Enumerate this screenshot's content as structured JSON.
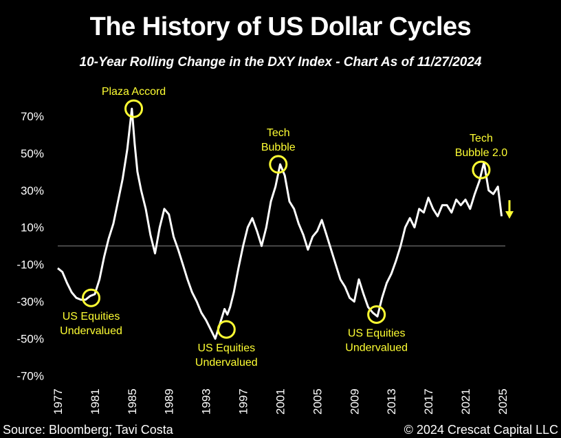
{
  "title": "The History of US Dollar Cycles",
  "subtitle": "10-Year Rolling Change in the DXY Index - Chart As of 11/27/2024",
  "footer": {
    "source": "Source: Bloomberg; Tavi Costa",
    "copyright": "© 2024 Crescat Capital LLC"
  },
  "colors": {
    "line": "#ffffff",
    "annotation": "#ffff33",
    "background": "#000000"
  },
  "chart_data": {
    "type": "line",
    "title": "The History of US Dollar Cycles",
    "subtitle": "10-Year Rolling Change in the DXY Index - Chart As of 11/27/2024",
    "xlabel": "",
    "ylabel": "",
    "xlim": [
      1977,
      2025.3
    ],
    "ylim": [
      -75,
      77
    ],
    "x_ticks": [
      "1977",
      "1981",
      "1985",
      "1989",
      "1993",
      "1997",
      "2001",
      "2005",
      "2009",
      "2013",
      "2017",
      "2021",
      "2025"
    ],
    "y_ticks": [
      {
        "value": 70,
        "label": "70%"
      },
      {
        "value": 50,
        "label": "50%"
      },
      {
        "value": 30,
        "label": "30%"
      },
      {
        "value": 10,
        "label": "10%"
      },
      {
        "value": -10,
        "label": "-10%"
      },
      {
        "value": -30,
        "label": "-30%"
      },
      {
        "value": -50,
        "label": "-50%"
      },
      {
        "value": -70,
        "label": "-70%"
      }
    ],
    "zero_line": 0,
    "grid": false,
    "series": [
      {
        "x": [
          1977.0,
          1977.5,
          1978.0,
          1978.5,
          1979.0,
          1979.5,
          1980.0,
          1980.5,
          1981.0,
          1981.5,
          1982.0,
          1982.5,
          1983.0,
          1983.5,
          1984.0,
          1984.5,
          1985.0,
          1985.3,
          1985.6,
          1986.0,
          1986.5,
          1987.0,
          1987.5,
          1988.0,
          1988.5,
          1989.0,
          1989.5,
          1990.0,
          1990.5,
          1991.0,
          1991.5,
          1992.0,
          1992.5,
          1993.0,
          1993.5,
          1994.0,
          1994.5,
          1995.0,
          1995.3,
          1995.6,
          1996.0,
          1996.5,
          1997.0,
          1997.5,
          1998.0,
          1998.5,
          1999.0,
          1999.5,
          2000.0,
          2000.5,
          2001.0,
          2001.5,
          2002.0,
          2002.5,
          2003.0,
          2003.5,
          2004.0,
          2004.5,
          2005.0,
          2005.5,
          2006.0,
          2006.5,
          2007.0,
          2007.5,
          2008.0,
          2008.5,
          2009.0,
          2009.5,
          2010.0,
          2010.5,
          2011.0,
          2011.5,
          2012.0,
          2012.5,
          2013.0,
          2013.5,
          2014.0,
          2014.5,
          2015.0,
          2015.5,
          2016.0,
          2016.5,
          2017.0,
          2017.5,
          2018.0,
          2018.5,
          2019.0,
          2019.5,
          2020.0,
          2020.5,
          2021.0,
          2021.5,
          2022.0,
          2022.5,
          2023.0,
          2023.5,
          2024.0,
          2024.5,
          2024.9
        ],
        "values": [
          -12,
          -14,
          -20,
          -25,
          -28,
          -29,
          -29,
          -27,
          -26,
          -18,
          -6,
          4,
          12,
          24,
          36,
          52,
          74,
          55,
          40,
          30,
          20,
          6,
          -4,
          10,
          20,
          17,
          5,
          -2,
          -10,
          -18,
          -25,
          -30,
          -36,
          -40,
          -45,
          -50,
          -42,
          -34,
          -37,
          -33,
          -25,
          -12,
          0,
          10,
          15,
          8,
          0,
          10,
          24,
          32,
          44,
          38,
          24,
          20,
          12,
          6,
          -2,
          5,
          8,
          14,
          6,
          -2,
          -10,
          -18,
          -22,
          -28,
          -30,
          -18,
          -26,
          -33,
          -36,
          -38,
          -28,
          -20,
          -15,
          -8,
          0,
          10,
          15,
          10,
          20,
          18,
          26,
          20,
          16,
          22,
          22,
          18,
          25,
          22,
          25,
          20,
          28,
          35,
          45,
          30,
          28,
          32,
          16
        ]
      }
    ],
    "annotations": [
      {
        "x": 1980.6,
        "y": -28,
        "label": [
          "US Equities",
          "Undervalued"
        ]
      },
      {
        "x": 1985.2,
        "y": 74,
        "label": [
          "Plaza Accord"
        ]
      },
      {
        "x": 1995.2,
        "y": -45,
        "label": [
          "US Equities",
          "Undervalued"
        ]
      },
      {
        "x": 2000.8,
        "y": 44,
        "label": [
          "Tech",
          "Bubble"
        ]
      },
      {
        "x": 2011.4,
        "y": -37,
        "label": [
          "US Equities",
          "Undervalued"
        ]
      },
      {
        "x": 2022.7,
        "y": 41,
        "label": [
          "Tech",
          "Bubble 2.0"
        ]
      }
    ],
    "trend_arrow": {
      "direction": "down",
      "x": 2025.3,
      "y": 18
    }
  }
}
